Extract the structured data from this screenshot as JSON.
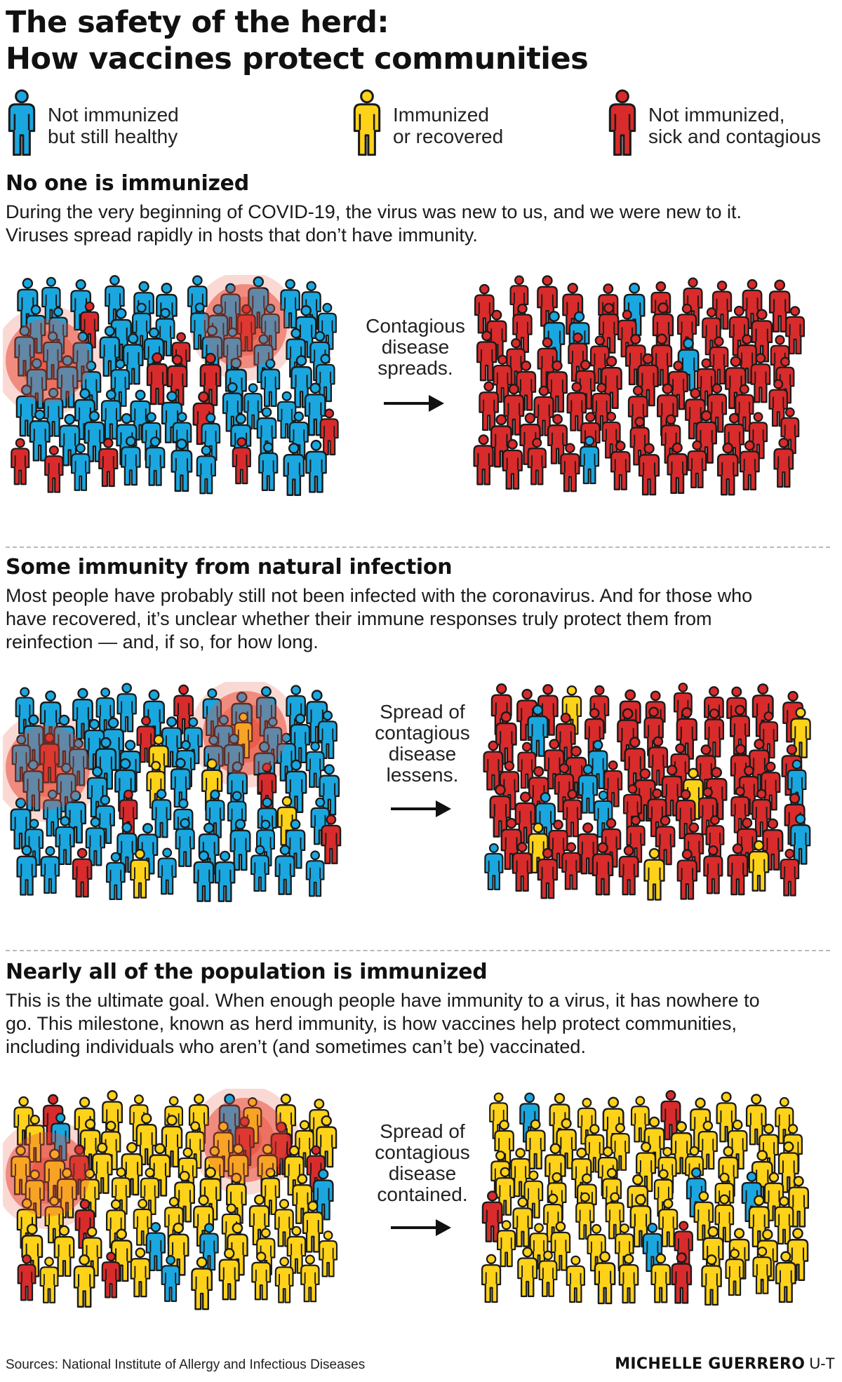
{
  "title": {
    "line1": "The safety of the herd:",
    "line2": "How vaccines protect communities"
  },
  "colors": {
    "not_immunized_healthy": "#1aa7e0",
    "immunized_or_recovered": "#ffd21a",
    "sick_contagious": "#d92b2b",
    "outline": "#1a1a1a",
    "halo": "#e8503c"
  },
  "legend": [
    {
      "key": "not_immunized_healthy",
      "line1": "Not immunized",
      "line2": "but still healthy",
      "icon": "person-icon"
    },
    {
      "key": "immunized_or_recovered",
      "line1": "Immunized",
      "line2": "or recovered",
      "icon": "person-icon"
    },
    {
      "key": "sick_contagious",
      "line1": "Not immunized,",
      "line2": "sick and contagious",
      "icon": "person-icon"
    }
  ],
  "sections": [
    {
      "heading": "No one is immunized",
      "body": [
        "During the very beginning of COVID-19, the virus was new to us, and we were new to it.",
        "Viruses spread rapidly in hosts that don’t have immunity."
      ],
      "caption": [
        "Contagious",
        "disease",
        "spreads."
      ],
      "before": {
        "healthy": 0.92,
        "immunized": 0.0,
        "sick": 0.08
      },
      "after": {
        "healthy": 0.07,
        "immunized": 0.0,
        "sick": 0.93
      }
    },
    {
      "heading": "Some immunity from natural infection",
      "body": [
        "Most people have probably still not been infected with the coronavirus. And for those who",
        "have recovered, it’s unclear whether their immune responses truly protect them from",
        "reinfection — and, if so, for how long."
      ],
      "caption": [
        "Spread of",
        "contagious",
        "disease",
        "lessens."
      ],
      "before": {
        "healthy": 0.82,
        "immunized": 0.1,
        "sick": 0.08
      },
      "after": {
        "healthy": 0.08,
        "immunized": 0.12,
        "sick": 0.8
      }
    },
    {
      "heading": "Nearly all of the population is immunized",
      "body": [
        "This is the ultimate goal. When enough people have immunity to a virus, it has nowhere to",
        "go. This milestone, known as herd immunity, is how vaccines help protect communities,",
        "including individuals who aren’t (and sometimes can’t be) vaccinated."
      ],
      "caption": [
        "Spread of",
        "contagious",
        "disease",
        "contained."
      ],
      "before": {
        "healthy": 0.08,
        "immunized": 0.86,
        "sick": 0.06
      },
      "after": {
        "healthy": 0.07,
        "immunized": 0.88,
        "sick": 0.05
      }
    }
  ],
  "footer": {
    "sources": "Sources: National Institute of Allergy and Infectious Diseases",
    "credit_name": "MICHELLE GUERRERO",
    "credit_org": "U-T"
  }
}
